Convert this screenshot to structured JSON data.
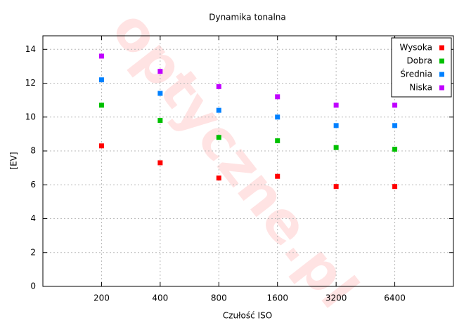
{
  "chart_data": {
    "type": "scatter",
    "title": "Dynamika tonalna",
    "x_label": "Czułość ISO",
    "y_label": "[EV]",
    "watermark": "optyczne.pl",
    "categories": [
      "200",
      "400",
      "800",
      "1600",
      "3200",
      "6400"
    ],
    "series": [
      {
        "name": "Wysoka",
        "color": "#ff0000",
        "values": [
          8.3,
          7.3,
          6.4,
          6.5,
          5.9,
          5.9
        ]
      },
      {
        "name": "Dobra",
        "color": "#00c000",
        "values": [
          10.7,
          9.8,
          8.8,
          8.6,
          8.2,
          8.1
        ]
      },
      {
        "name": "Średnia",
        "color": "#0080ff",
        "values": [
          12.2,
          11.4,
          10.4,
          10.0,
          9.5,
          9.5
        ]
      },
      {
        "name": "Niska",
        "color": "#c000ff",
        "values": [
          13.6,
          12.7,
          11.8,
          11.2,
          10.7,
          10.7
        ]
      }
    ],
    "ylim": [
      0,
      14.8
    ],
    "yticks": [
      0,
      2,
      4,
      6,
      8,
      10,
      12,
      14
    ],
    "grid": true,
    "legend": "top-right"
  }
}
